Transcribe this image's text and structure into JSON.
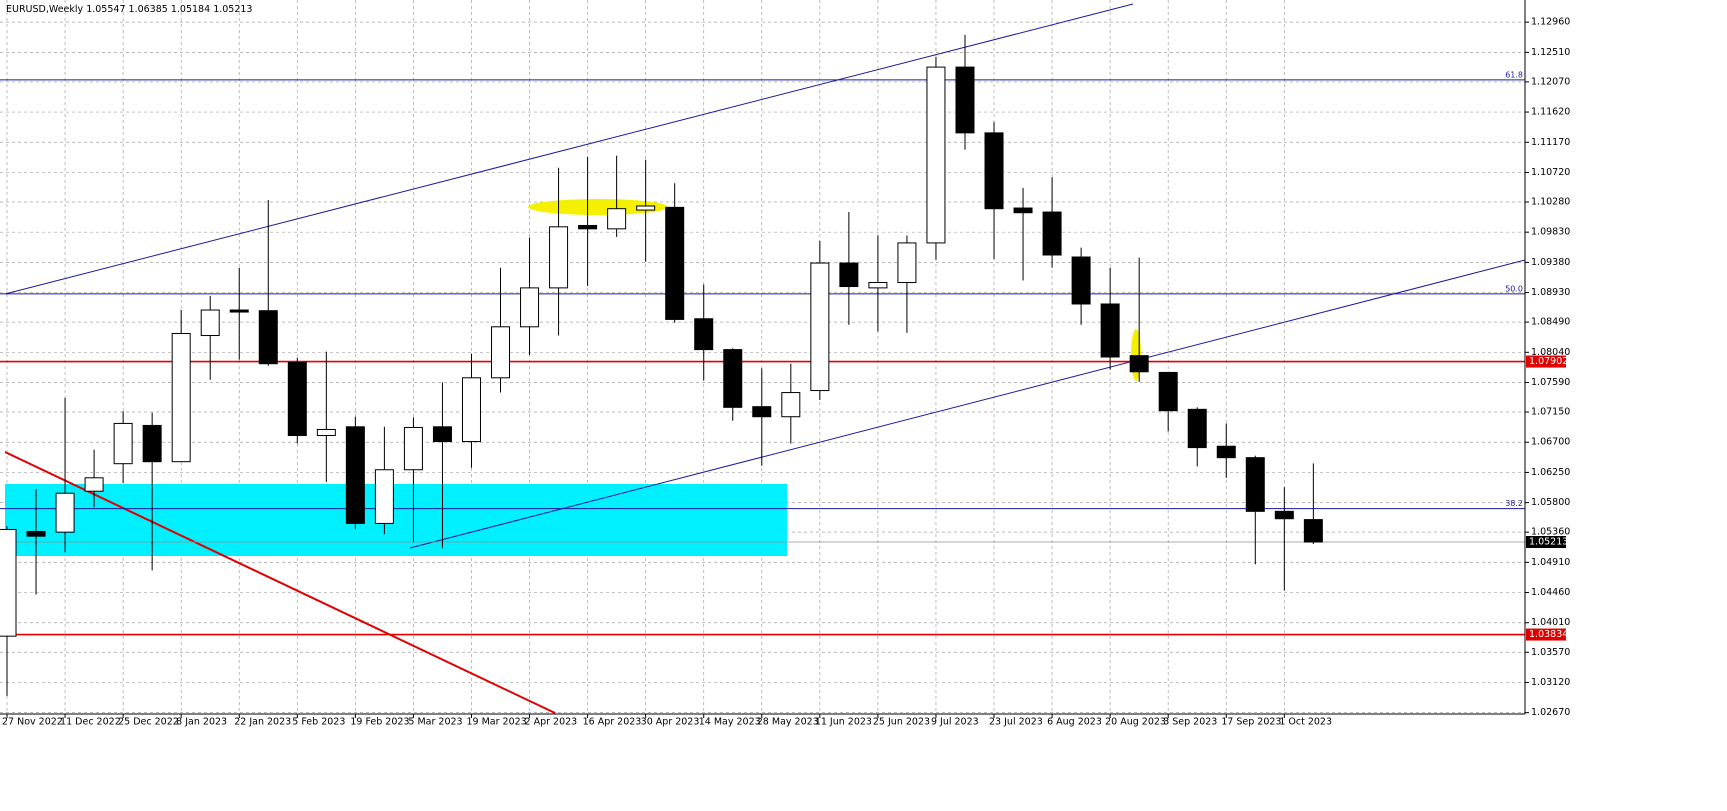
{
  "chart_data": {
    "type": "candlestick",
    "title": "EURUSD,Weekly",
    "categories": [
      "27 Nov 2022",
      null,
      "11 Dec 2022",
      null,
      "25 Dec 2022",
      null,
      "8 Jan 2023",
      null,
      "22 Jan 2023",
      null,
      "5 Feb 2023",
      null,
      "19 Feb 2023",
      null,
      "5 Mar 2023",
      null,
      "19 Mar 2023",
      null,
      "2 Apr 2023",
      null,
      "16 Apr 2023",
      null,
      "30 Apr 2023",
      null,
      "14 May 2023",
      null,
      "28 May 2023",
      null,
      "11 Jun 2023",
      null,
      "25 Jun 2023",
      null,
      "9 Jul 2023",
      null,
      "23 Jul 2023",
      null,
      "6 Aug 2023",
      null,
      "20 Aug 2023",
      null,
      "3 Sep 2023",
      null,
      "17 Sep 2023",
      null,
      "1 Oct 2023",
      null
    ],
    "open": [
      1.0381,
      1.0537,
      1.0536,
      1.0597,
      1.0638,
      1.0695,
      1.0641,
      1.0829,
      1.0867,
      1.0866,
      1.0789,
      1.068,
      1.0693,
      1.0549,
      1.0629,
      1.0693,
      1.0671,
      1.0766,
      1.0842,
      1.09,
      1.0993,
      1.0988,
      1.1016,
      1.102,
      1.0854,
      1.0808,
      1.0723,
      1.0708,
      1.0747,
      1.0937,
      1.09,
      1.0908,
      1.0967,
      1.1229,
      1.1131,
      1.1019,
      1.1013,
      1.0946,
      1.0876,
      1.0799,
      1.0774,
      1.0719,
      1.0664,
      1.0647,
      1.0567,
      1.05547
    ],
    "high": [
      1.0545,
      1.06,
      1.0736,
      1.0659,
      1.0716,
      1.0714,
      1.0867,
      1.0888,
      1.093,
      1.1031,
      1.0796,
      1.0805,
      1.0708,
      1.0693,
      1.0707,
      1.0759,
      1.0802,
      1.093,
      1.0975,
      1.1079,
      1.1095,
      1.1097,
      1.1091,
      1.1056,
      1.0905,
      1.081,
      1.078,
      1.0787,
      1.097,
      1.1013,
      1.0978,
      1.0978,
      1.1244,
      1.1277,
      1.1147,
      1.1049,
      1.1065,
      1.096,
      1.093,
      1.0945,
      1.0775,
      1.0722,
      1.0698,
      1.065,
      1.0603,
      1.06385
    ],
    "low": [
      1.0292,
      1.0443,
      1.0506,
      1.0573,
      1.0609,
      1.0479,
      1.0641,
      1.0763,
      1.0793,
      1.0784,
      1.0668,
      1.0611,
      1.054,
      1.0533,
      1.0521,
      1.0512,
      1.0632,
      1.0744,
      1.08,
      1.0829,
      1.0903,
      1.0976,
      1.0939,
      1.0848,
      1.0762,
      1.0702,
      1.0635,
      1.0668,
      1.0733,
      1.0845,
      1.0835,
      1.0833,
      1.0942,
      1.1106,
      1.0943,
      1.0911,
      1.093,
      1.0845,
      1.0778,
      1.076,
      1.0686,
      1.0634,
      1.0617,
      1.0488,
      1.0449,
      1.05184
    ],
    "close": [
      1.054,
      1.053,
      1.0594,
      1.0617,
      1.0698,
      1.0641,
      1.0832,
      1.0867,
      1.0864,
      1.0787,
      1.068,
      1.0689,
      1.0549,
      1.0629,
      1.0692,
      1.0671,
      1.0766,
      1.0842,
      1.09,
      1.0991,
      1.0988,
      1.1018,
      1.1022,
      1.0853,
      1.0808,
      1.0722,
      1.0708,
      1.0744,
      1.0937,
      1.0902,
      1.0908,
      1.0967,
      1.1229,
      1.1131,
      1.1018,
      1.1012,
      1.0949,
      1.0876,
      1.0797,
      1.0775,
      1.0717,
      1.0662,
      1.0647,
      1.0567,
      1.0556,
      1.05213
    ],
    "ylim": [
      1.0265,
      1.1329
    ],
    "yticks": [
      {
        "value": 1.1296,
        "label": "1.12960"
      },
      {
        "value": 1.1251,
        "label": "1.12510"
      },
      {
        "value": 1.1207,
        "label": "1.12070"
      },
      {
        "value": 1.1162,
        "label": "1.11620"
      },
      {
        "value": 1.1117,
        "label": "1.11170"
      },
      {
        "value": 1.1072,
        "label": "1.10720"
      },
      {
        "value": 1.1028,
        "label": "1.10280"
      },
      {
        "value": 1.0983,
        "label": "1.09830"
      },
      {
        "value": 1.0938,
        "label": "1.09380"
      },
      {
        "value": 1.0893,
        "label": "1.08930"
      },
      {
        "value": 1.0849,
        "label": "1.08490"
      },
      {
        "value": 1.0804,
        "label": "1.08040"
      },
      {
        "value": 1.0759,
        "label": "1.07590"
      },
      {
        "value": 1.0715,
        "label": "1.07150"
      },
      {
        "value": 1.067,
        "label": "1.06700"
      },
      {
        "value": 1.0625,
        "label": "1.06250"
      },
      {
        "value": 1.058,
        "label": "1.05800"
      },
      {
        "value": 1.0536,
        "label": "1.05360"
      },
      {
        "value": 1.0491,
        "label": "1.04910"
      },
      {
        "value": 1.0446,
        "label": "1.04460"
      },
      {
        "value": 1.0401,
        "label": "1.04010"
      },
      {
        "value": 1.0357,
        "label": "1.03570"
      },
      {
        "value": 1.0312,
        "label": "1.03120"
      },
      {
        "value": 1.0267,
        "label": "1.02670"
      }
    ],
    "grid": true,
    "price_lines": [
      {
        "value": 1.07902,
        "color": "#e00000"
      },
      {
        "value": 1.03834,
        "color": "#e00000"
      }
    ],
    "fib_levels": [
      {
        "label": "61.8",
        "value": 1.121
      },
      {
        "label": "50.0",
        "value": 1.0891
      },
      {
        "label": "38.2",
        "value": 1.0571
      }
    ],
    "bull_color": "#ffffff",
    "bear_color": "#000000"
  }
}
